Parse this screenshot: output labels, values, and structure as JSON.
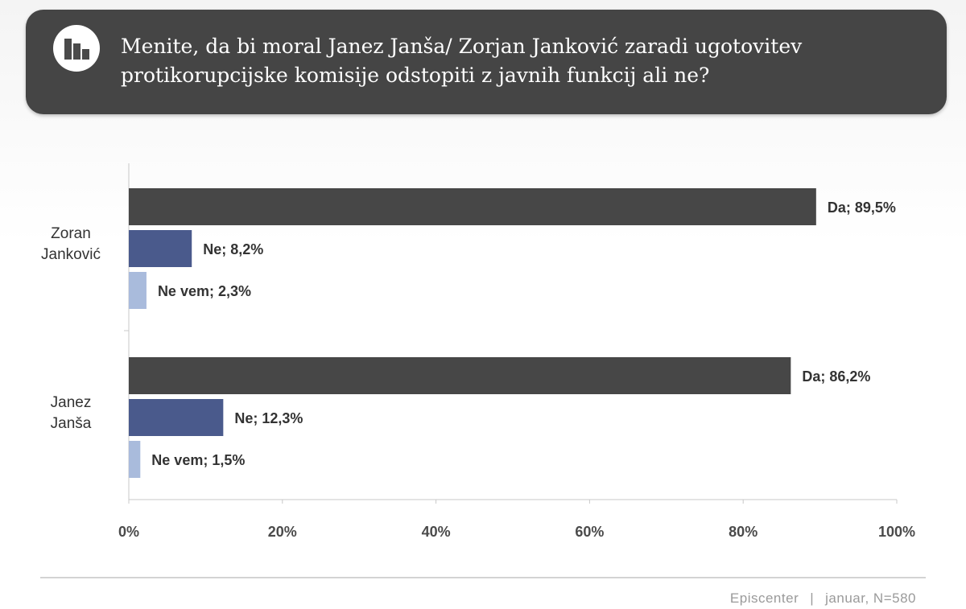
{
  "header": {
    "title": "Menite, da bi moral Janez Janša/ Zorjan Janković zaradi  ugotovitev\nprotikorupcijske komisije  odstopiti z javnih funkcij ali ne?",
    "icon": "bar-chart-icon"
  },
  "chart_data": {
    "type": "bar",
    "orientation": "horizontal",
    "categories": [
      "Zoran\nJanković",
      "Janez\nJanša"
    ],
    "series": [
      {
        "name": "Da",
        "values": [
          89.5,
          86.2
        ],
        "labels": [
          "Da; 89,5%",
          "Da; 86,2%"
        ],
        "color": "#474747"
      },
      {
        "name": "Ne",
        "values": [
          8.2,
          12.3
        ],
        "labels": [
          "Ne; 8,2%",
          "Ne; 12,3%"
        ],
        "color": "#4a5a8c"
      },
      {
        "name": "Ne vem",
        "values": [
          2.3,
          1.5
        ],
        "labels": [
          "Ne vem; 2,3%",
          "Ne vem; 1,5%"
        ],
        "color": "#a9bbdc"
      }
    ],
    "x_ticks": [
      "0%",
      "20%",
      "40%",
      "60%",
      "80%",
      "100%"
    ],
    "xlim": [
      0,
      100
    ],
    "legend": "none",
    "grid": false
  },
  "footer": {
    "source": "Episcenter",
    "separator": "|",
    "note": "januar, N=580"
  }
}
